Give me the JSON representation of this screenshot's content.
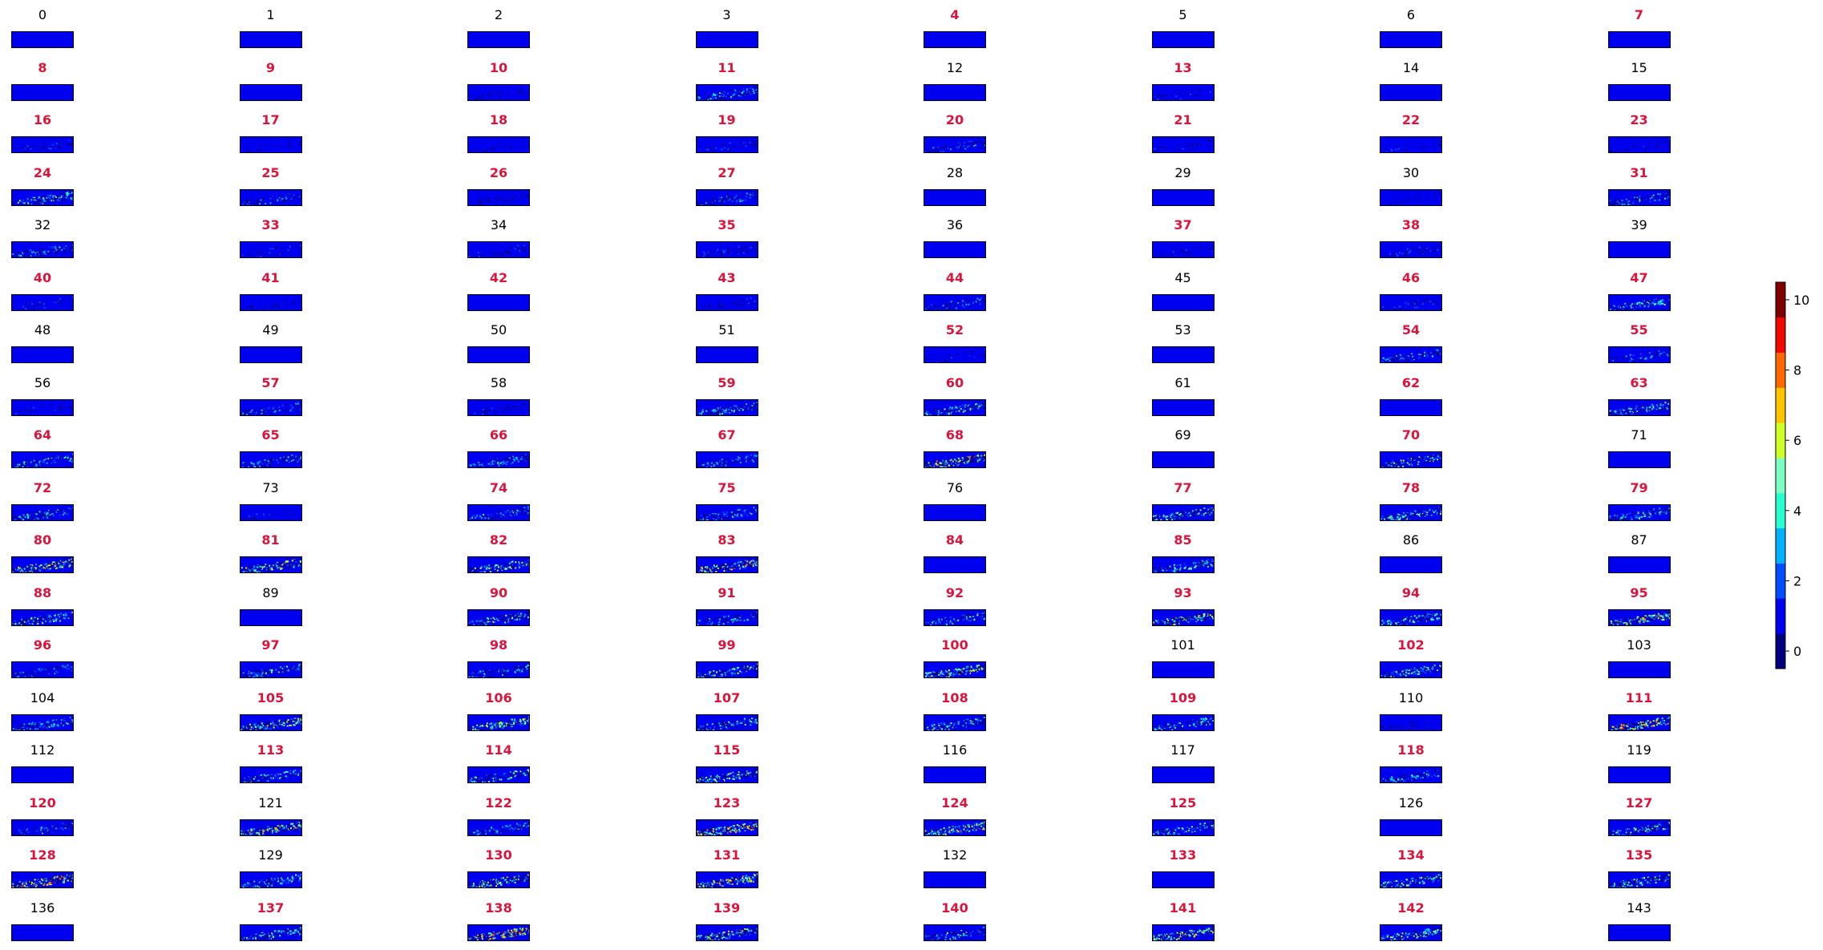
{
  "chart_data": {
    "type": "heatmap",
    "title": "",
    "grid": {
      "rows": 18,
      "cols": 8
    },
    "panels": [
      {
        "label": "0",
        "highlighted": false,
        "intensity": 0.0
      },
      {
        "label": "1",
        "highlighted": false,
        "intensity": 0.0
      },
      {
        "label": "2",
        "highlighted": false,
        "intensity": 0.0
      },
      {
        "label": "3",
        "highlighted": false,
        "intensity": 0.0
      },
      {
        "label": "4",
        "highlighted": true,
        "intensity": 0.0
      },
      {
        "label": "5",
        "highlighted": false,
        "intensity": 0.0
      },
      {
        "label": "6",
        "highlighted": false,
        "intensity": 0.0
      },
      {
        "label": "7",
        "highlighted": true,
        "intensity": 0.0
      },
      {
        "label": "8",
        "highlighted": true,
        "intensity": 0.0
      },
      {
        "label": "9",
        "highlighted": true,
        "intensity": 0.0
      },
      {
        "label": "10",
        "highlighted": true,
        "intensity": 0.12
      },
      {
        "label": "11",
        "highlighted": true,
        "intensity": 0.35
      },
      {
        "label": "12",
        "highlighted": false,
        "intensity": 0.0
      },
      {
        "label": "13",
        "highlighted": true,
        "intensity": 0.12
      },
      {
        "label": "14",
        "highlighted": false,
        "intensity": 0.0
      },
      {
        "label": "15",
        "highlighted": false,
        "intensity": 0.0
      },
      {
        "label": "16",
        "highlighted": true,
        "intensity": 0.2
      },
      {
        "label": "17",
        "highlighted": true,
        "intensity": 0.1
      },
      {
        "label": "18",
        "highlighted": true,
        "intensity": 0.1
      },
      {
        "label": "19",
        "highlighted": true,
        "intensity": 0.15
      },
      {
        "label": "20",
        "highlighted": true,
        "intensity": 0.25
      },
      {
        "label": "21",
        "highlighted": true,
        "intensity": 0.12
      },
      {
        "label": "22",
        "highlighted": true,
        "intensity": 0.12
      },
      {
        "label": "23",
        "highlighted": true,
        "intensity": 0.12
      },
      {
        "label": "24",
        "highlighted": true,
        "intensity": 0.55
      },
      {
        "label": "25",
        "highlighted": true,
        "intensity": 0.3
      },
      {
        "label": "26",
        "highlighted": true,
        "intensity": 0.1
      },
      {
        "label": "27",
        "highlighted": true,
        "intensity": 0.35
      },
      {
        "label": "28",
        "highlighted": false,
        "intensity": 0.0
      },
      {
        "label": "29",
        "highlighted": false,
        "intensity": 0.0
      },
      {
        "label": "30",
        "highlighted": false,
        "intensity": 0.05
      },
      {
        "label": "31",
        "highlighted": true,
        "intensity": 0.4
      },
      {
        "label": "32",
        "highlighted": false,
        "intensity": 0.35
      },
      {
        "label": "33",
        "highlighted": true,
        "intensity": 0.15
      },
      {
        "label": "34",
        "highlighted": false,
        "intensity": 0.15
      },
      {
        "label": "35",
        "highlighted": true,
        "intensity": 0.2
      },
      {
        "label": "36",
        "highlighted": false,
        "intensity": 0.0
      },
      {
        "label": "37",
        "highlighted": true,
        "intensity": 0.12
      },
      {
        "label": "38",
        "highlighted": true,
        "intensity": 0.2
      },
      {
        "label": "39",
        "highlighted": false,
        "intensity": 0.0
      },
      {
        "label": "40",
        "highlighted": true,
        "intensity": 0.15
      },
      {
        "label": "41",
        "highlighted": true,
        "intensity": 0.1
      },
      {
        "label": "42",
        "highlighted": true,
        "intensity": 0.0
      },
      {
        "label": "43",
        "highlighted": true,
        "intensity": 0.12
      },
      {
        "label": "44",
        "highlighted": true,
        "intensity": 0.3
      },
      {
        "label": "45",
        "highlighted": false,
        "intensity": 0.0
      },
      {
        "label": "46",
        "highlighted": true,
        "intensity": 0.2
      },
      {
        "label": "47",
        "highlighted": true,
        "intensity": 0.5
      },
      {
        "label": "48",
        "highlighted": false,
        "intensity": 0.0
      },
      {
        "label": "49",
        "highlighted": false,
        "intensity": 0.0
      },
      {
        "label": "50",
        "highlighted": false,
        "intensity": 0.0
      },
      {
        "label": "51",
        "highlighted": false,
        "intensity": 0.0
      },
      {
        "label": "52",
        "highlighted": true,
        "intensity": 0.12
      },
      {
        "label": "53",
        "highlighted": false,
        "intensity": 0.0
      },
      {
        "label": "54",
        "highlighted": true,
        "intensity": 0.35
      },
      {
        "label": "55",
        "highlighted": true,
        "intensity": 0.3
      },
      {
        "label": "56",
        "highlighted": false,
        "intensity": 0.12
      },
      {
        "label": "57",
        "highlighted": true,
        "intensity": 0.3
      },
      {
        "label": "58",
        "highlighted": false,
        "intensity": 0.12
      },
      {
        "label": "59",
        "highlighted": true,
        "intensity": 0.45
      },
      {
        "label": "60",
        "highlighted": true,
        "intensity": 0.5
      },
      {
        "label": "61",
        "highlighted": false,
        "intensity": 0.0
      },
      {
        "label": "62",
        "highlighted": true,
        "intensity": 0.0
      },
      {
        "label": "63",
        "highlighted": true,
        "intensity": 0.45
      },
      {
        "label": "64",
        "highlighted": true,
        "intensity": 0.45
      },
      {
        "label": "65",
        "highlighted": true,
        "intensity": 0.35
      },
      {
        "label": "66",
        "highlighted": true,
        "intensity": 0.35
      },
      {
        "label": "67",
        "highlighted": true,
        "intensity": 0.3
      },
      {
        "label": "68",
        "highlighted": true,
        "intensity": 0.85
      },
      {
        "label": "69",
        "highlighted": false,
        "intensity": 0.0
      },
      {
        "label": "70",
        "highlighted": true,
        "intensity": 0.55
      },
      {
        "label": "71",
        "highlighted": false,
        "intensity": 0.0
      },
      {
        "label": "72",
        "highlighted": true,
        "intensity": 0.4
      },
      {
        "label": "73",
        "highlighted": false,
        "intensity": 0.12
      },
      {
        "label": "74",
        "highlighted": true,
        "intensity": 0.35
      },
      {
        "label": "75",
        "highlighted": true,
        "intensity": 0.35
      },
      {
        "label": "76",
        "highlighted": false,
        "intensity": 0.0
      },
      {
        "label": "77",
        "highlighted": true,
        "intensity": 0.55
      },
      {
        "label": "78",
        "highlighted": true,
        "intensity": 0.55
      },
      {
        "label": "79",
        "highlighted": true,
        "intensity": 0.45
      },
      {
        "label": "80",
        "highlighted": true,
        "intensity": 0.75
      },
      {
        "label": "81",
        "highlighted": true,
        "intensity": 0.7
      },
      {
        "label": "82",
        "highlighted": true,
        "intensity": 0.6
      },
      {
        "label": "83",
        "highlighted": true,
        "intensity": 0.75
      },
      {
        "label": "84",
        "highlighted": true,
        "intensity": 0.0
      },
      {
        "label": "85",
        "highlighted": true,
        "intensity": 0.5
      },
      {
        "label": "86",
        "highlighted": false,
        "intensity": 0.0
      },
      {
        "label": "87",
        "highlighted": false,
        "intensity": 0.0
      },
      {
        "label": "88",
        "highlighted": true,
        "intensity": 0.55
      },
      {
        "label": "89",
        "highlighted": false,
        "intensity": 0.0
      },
      {
        "label": "90",
        "highlighted": true,
        "intensity": 0.55
      },
      {
        "label": "91",
        "highlighted": true,
        "intensity": 0.4
      },
      {
        "label": "92",
        "highlighted": true,
        "intensity": 0.45
      },
      {
        "label": "93",
        "highlighted": true,
        "intensity": 0.75
      },
      {
        "label": "94",
        "highlighted": true,
        "intensity": 0.6
      },
      {
        "label": "95",
        "highlighted": true,
        "intensity": 0.8
      },
      {
        "label": "96",
        "highlighted": true,
        "intensity": 0.3
      },
      {
        "label": "97",
        "highlighted": true,
        "intensity": 0.45
      },
      {
        "label": "98",
        "highlighted": true,
        "intensity": 0.4
      },
      {
        "label": "99",
        "highlighted": true,
        "intensity": 0.6
      },
      {
        "label": "100",
        "highlighted": true,
        "intensity": 0.8
      },
      {
        "label": "101",
        "highlighted": false,
        "intensity": 0.0
      },
      {
        "label": "102",
        "highlighted": true,
        "intensity": 0.5
      },
      {
        "label": "103",
        "highlighted": false,
        "intensity": 0.0
      },
      {
        "label": "104",
        "highlighted": false,
        "intensity": 0.4
      },
      {
        "label": "105",
        "highlighted": true,
        "intensity": 0.75
      },
      {
        "label": "106",
        "highlighted": true,
        "intensity": 0.65
      },
      {
        "label": "107",
        "highlighted": true,
        "intensity": 0.5
      },
      {
        "label": "108",
        "highlighted": true,
        "intensity": 0.5
      },
      {
        "label": "109",
        "highlighted": true,
        "intensity": 0.45
      },
      {
        "label": "110",
        "highlighted": false,
        "intensity": 0.05
      },
      {
        "label": "111",
        "highlighted": true,
        "intensity": 0.9
      },
      {
        "label": "112",
        "highlighted": false,
        "intensity": 0.0
      },
      {
        "label": "113",
        "highlighted": true,
        "intensity": 0.45
      },
      {
        "label": "114",
        "highlighted": true,
        "intensity": 0.5
      },
      {
        "label": "115",
        "highlighted": true,
        "intensity": 0.65
      },
      {
        "label": "116",
        "highlighted": false,
        "intensity": 0.0
      },
      {
        "label": "117",
        "highlighted": false,
        "intensity": 0.0
      },
      {
        "label": "118",
        "highlighted": true,
        "intensity": 0.4
      },
      {
        "label": "119",
        "highlighted": false,
        "intensity": 0.0
      },
      {
        "label": "120",
        "highlighted": true,
        "intensity": 0.35
      },
      {
        "label": "121",
        "highlighted": false,
        "intensity": 0.8
      },
      {
        "label": "122",
        "highlighted": true,
        "intensity": 0.35
      },
      {
        "label": "123",
        "highlighted": true,
        "intensity": 0.85
      },
      {
        "label": "124",
        "highlighted": true,
        "intensity": 0.75
      },
      {
        "label": "125",
        "highlighted": true,
        "intensity": 0.45
      },
      {
        "label": "126",
        "highlighted": false,
        "intensity": 0.0
      },
      {
        "label": "127",
        "highlighted": true,
        "intensity": 0.55
      },
      {
        "label": "128",
        "highlighted": true,
        "intensity": 0.9
      },
      {
        "label": "129",
        "highlighted": false,
        "intensity": 0.5
      },
      {
        "label": "130",
        "highlighted": true,
        "intensity": 0.65
      },
      {
        "label": "131",
        "highlighted": true,
        "intensity": 0.8
      },
      {
        "label": "132",
        "highlighted": false,
        "intensity": 0.0
      },
      {
        "label": "133",
        "highlighted": true,
        "intensity": 0.0
      },
      {
        "label": "134",
        "highlighted": true,
        "intensity": 0.6
      },
      {
        "label": "135",
        "highlighted": true,
        "intensity": 0.55
      },
      {
        "label": "136",
        "highlighted": false,
        "intensity": 0.0
      },
      {
        "label": "137",
        "highlighted": true,
        "intensity": 0.55
      },
      {
        "label": "138",
        "highlighted": true,
        "intensity": 0.9
      },
      {
        "label": "139",
        "highlighted": true,
        "intensity": 0.75
      },
      {
        "label": "140",
        "highlighted": true,
        "intensity": 0.45
      },
      {
        "label": "141",
        "highlighted": true,
        "intensity": 0.85
      },
      {
        "label": "142",
        "highlighted": true,
        "intensity": 0.6
      },
      {
        "label": "143",
        "highlighted": false,
        "intensity": 0.0
      }
    ],
    "colorbar": {
      "ticks": [
        "0",
        "2",
        "4",
        "6",
        "8",
        "10"
      ],
      "range": [
        -0.5,
        10.5
      ],
      "levels": [
        -0.5,
        0.5,
        1.5,
        2.5,
        3.5,
        4.5,
        5.5,
        6.5,
        7.5,
        8.5,
        9.5,
        10.5
      ],
      "colors": [
        "#00007f",
        "#0000f1",
        "#004dff",
        "#00b1ff",
        "#29ffce",
        "#7dffc1",
        "#ceff29",
        "#ffc400",
        "#ff6800",
        "#f10800",
        "#7f0000"
      ],
      "colormap": "jet"
    },
    "colors": {
      "highlight_title": "#dc143c",
      "normal_title": "#000000",
      "base_fill": "#0000f1"
    }
  }
}
